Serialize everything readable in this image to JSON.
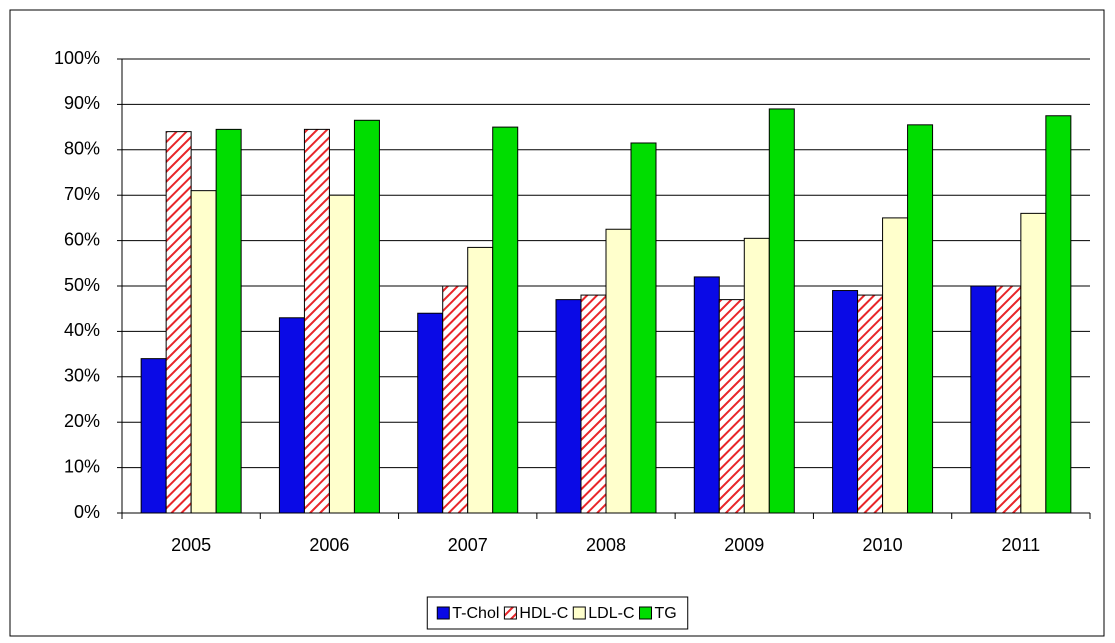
{
  "chart_data": {
    "type": "bar",
    "categories": [
      "2005",
      "2006",
      "2007",
      "2008",
      "2009",
      "2010",
      "2011"
    ],
    "series": [
      {
        "name": "T-Chol",
        "color": "#0a0ae6",
        "values": [
          34,
          43,
          44,
          47,
          52,
          49,
          50
        ]
      },
      {
        "name": "HDL-C",
        "color": "#e8262a",
        "pattern": "diagonal-hatch",
        "values": [
          84,
          84.5,
          50,
          48,
          47,
          48,
          50
        ]
      },
      {
        "name": "LDL-C",
        "color": "#ffffcc",
        "values": [
          71,
          70,
          58.5,
          62.5,
          60.5,
          65,
          66
        ]
      },
      {
        "name": "TG",
        "color": "#00dd00",
        "values": [
          84.5,
          86.5,
          85,
          81.5,
          89,
          85.5,
          87.5
        ]
      }
    ],
    "ylim": [
      0,
      100
    ],
    "yticks": [
      {
        "value": 0,
        "label": "0%"
      },
      {
        "value": 10,
        "label": "10%"
      },
      {
        "value": 20,
        "label": "20%"
      },
      {
        "value": 30,
        "label": "30%"
      },
      {
        "value": 40,
        "label": "40%"
      },
      {
        "value": 50,
        "label": "50%"
      },
      {
        "value": 60,
        "label": "60%"
      },
      {
        "value": 70,
        "label": "70%"
      },
      {
        "value": 80,
        "label": "80%"
      },
      {
        "value": 90,
        "label": "90%"
      },
      {
        "value": 100,
        "label": "100%"
      }
    ],
    "grid": true,
    "legend": "bottom"
  }
}
